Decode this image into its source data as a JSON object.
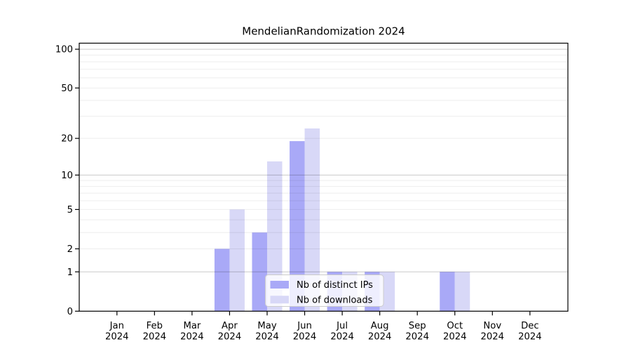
{
  "chart_data": {
    "type": "bar",
    "title": "MendelianRandomization 2024",
    "categories": [
      "Jan",
      "Feb",
      "Mar",
      "Apr",
      "May",
      "Jun",
      "Jul",
      "Aug",
      "Sep",
      "Oct",
      "Nov",
      "Dec"
    ],
    "x_tick_year": "2024",
    "series": [
      {
        "name": "Nb of distinct IPs",
        "color": "#a9a9f7",
        "values": [
          0,
          0,
          0,
          2,
          3,
          19,
          1,
          1,
          0,
          1,
          0,
          0
        ]
      },
      {
        "name": "Nb of downloads",
        "color": "#d8d8f7",
        "values": [
          0,
          0,
          0,
          5,
          13,
          24,
          1,
          1,
          0,
          1,
          0,
          0
        ]
      }
    ],
    "y_axis": {
      "scale": "log10(1+x)",
      "ticks": [
        0,
        1,
        2,
        5,
        10,
        20,
        50,
        100
      ],
      "range": [
        0,
        112
      ],
      "major_gridlines": [
        1,
        10,
        100
      ],
      "minor_gridlines": [
        2,
        3,
        4,
        5,
        6,
        7,
        8,
        9,
        20,
        30,
        40,
        50,
        60,
        70,
        80,
        90
      ]
    },
    "legend": {
      "position": "lower center",
      "entries": [
        "Nb of distinct IPs",
        "Nb of downloads"
      ]
    },
    "colors": {
      "background": "#ffffff",
      "axis": "#000000",
      "grid_major": "#c9c9c9",
      "grid_minor": "#ededed",
      "legend_border": "#cccccc",
      "legend_fill": "#ffffff"
    }
  }
}
